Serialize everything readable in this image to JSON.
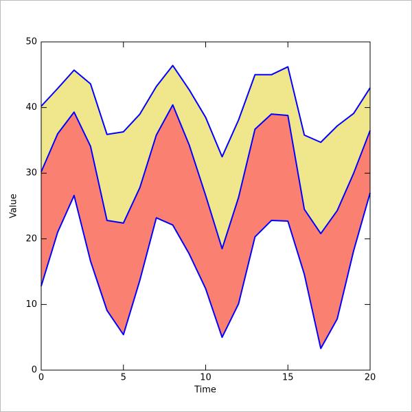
{
  "chart_data": {
    "type": "area",
    "xlabel": "Time",
    "ylabel": "Value",
    "x": [
      0,
      1,
      2,
      3,
      4,
      5,
      6,
      7,
      8,
      9,
      10,
      11,
      12,
      13,
      14,
      15,
      16,
      17,
      18,
      19,
      20
    ],
    "series": [
      {
        "line_color": "#0000ff",
        "values": [
          12.8,
          21.0,
          26.6,
          16.6,
          9.1,
          5.4,
          13.7,
          23.2,
          22.1,
          17.7,
          12.4,
          5.0,
          10.1,
          20.3,
          22.8,
          22.7,
          14.6,
          3.3,
          7.8,
          18.2,
          27.0
        ]
      },
      {
        "line_color": "#0000ff",
        "color": "#fa8072",
        "values": [
          30.2,
          36.0,
          39.3,
          34.1,
          22.8,
          22.4,
          27.8,
          35.8,
          40.4,
          34.3,
          26.6,
          18.5,
          26.3,
          36.7,
          39.0,
          38.8,
          24.5,
          20.8,
          24.3,
          30.0,
          36.5
        ]
      },
      {
        "line_color": "#0000ff",
        "color": "#f0e68c",
        "values": [
          40.2,
          42.9,
          45.7,
          43.6,
          35.9,
          36.3,
          39.0,
          43.2,
          46.4,
          42.7,
          38.5,
          32.5,
          38.1,
          45.0,
          45.0,
          46.2,
          35.8,
          34.7,
          37.2,
          39.1,
          43.0
        ]
      }
    ],
    "xlim": [
      0,
      20
    ],
    "xticks": [
      0,
      5,
      10,
      15,
      20
    ],
    "ylim": [
      0,
      50
    ],
    "yticks": [
      0,
      10,
      20,
      30,
      40,
      50
    ]
  }
}
